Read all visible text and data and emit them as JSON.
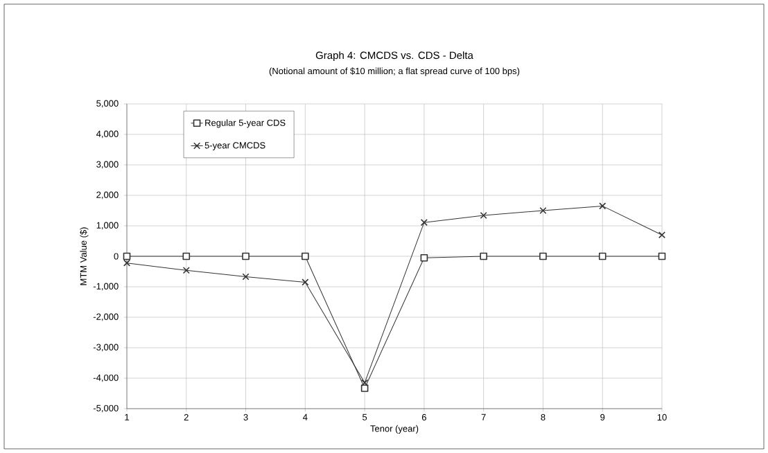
{
  "chart_data": {
    "type": "line",
    "title": "Graph 4:  CMCDS vs. CDS - Delta",
    "subtitle": "(Notional amount of $10 million; a flat spread curve of 100 bps)",
    "xlabel": "Tenor (year)",
    "ylabel": "MTM Value ($)",
    "categories": [
      "1",
      "2",
      "3",
      "4",
      "5",
      "6",
      "7",
      "8",
      "9",
      "10"
    ],
    "series": [
      {
        "name": "Regular 5-year CDS",
        "color": "#333333",
        "marker": "square",
        "values": [
          0,
          0,
          0,
          0,
          -4330,
          -50,
          0,
          0,
          0,
          0
        ]
      },
      {
        "name": "5-year CMCDS",
        "color": "#333333",
        "marker": "cross",
        "values": [
          -220,
          -460,
          -670,
          -850,
          -4150,
          1110,
          1340,
          1500,
          1650,
          700
        ]
      }
    ],
    "ylim": [
      -5000,
      5000
    ],
    "yticks": [
      {
        "value": -5000,
        "label": "-5,000"
      },
      {
        "value": -4000,
        "label": "-4,000"
      },
      {
        "value": -3000,
        "label": "-3,000"
      },
      {
        "value": -2000,
        "label": "-2,000"
      },
      {
        "value": -1000,
        "label": "-1,000"
      },
      0,
      {
        "value": 1000,
        "label": "1,000"
      },
      {
        "value": 2000,
        "label": "2,000"
      },
      {
        "value": 3000,
        "label": "3,000"
      },
      {
        "value": 4000,
        "label": "4,000"
      },
      {
        "value": 5000,
        "label": "5,000"
      }
    ],
    "grid": true,
    "legend": "top left",
    "line_style": "solid"
  }
}
